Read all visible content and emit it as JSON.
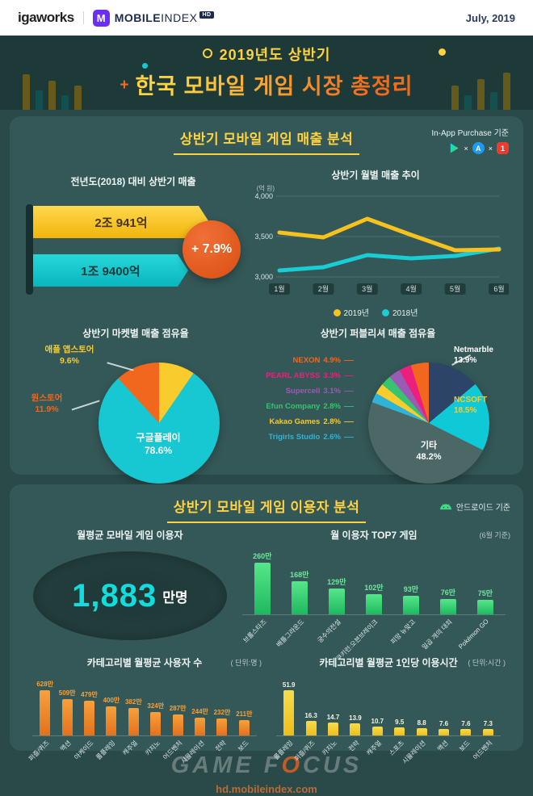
{
  "topbar": {
    "logo_igaworks": "igaworks",
    "logo_m": "M",
    "logo_mobile": "MOBILE",
    "logo_index": "INDEX",
    "logo_hd": "HD",
    "date": "July, 2019"
  },
  "header": {
    "kicker": "2019년도 상반기",
    "plus": "+",
    "title": "한국 모바일 게임 시장 총정리"
  },
  "revenue": {
    "section_title": "상반기 모바일 게임 매출 분석",
    "iap_note": "In-App Purchase 기준",
    "times": "×"
  },
  "users": {
    "section_title": "상반기 모바일 게임 이용자 분석",
    "android_note": "안드로이드 기준",
    "mau_title": "월평균 모바일 게임 이용자",
    "mau_value": "1,883",
    "mau_unit": "만명"
  },
  "footer": {
    "wm_game": "GAME",
    "wm_f": "F",
    "wm_o": "O",
    "wm_cus": "CUS",
    "url": "hd.mobileindex.com"
  },
  "icon_glyphs": {
    "app_store": "A",
    "one_store": "1"
  },
  "icons": {
    "google_play_icon": "play-triangle",
    "app_store_icon": "A-in-blue-circle",
    "one_store_icon": "1-in-red-square",
    "android_icon": "android-robot",
    "mobileindex_m_icon": "M-in-purple-square"
  },
  "chart_data": [
    {
      "id": "yoy_revenue",
      "type": "bar",
      "title": "전년도(2018) 대비 상반기 매출",
      "categories": [
        "2019 상반기",
        "2018 상반기"
      ],
      "values": [
        20941,
        19400
      ],
      "value_labels": [
        "2조 941억",
        "1조 9400억"
      ],
      "growth_label": "+ 7.9%",
      "colors": [
        "#f7c21e",
        "#19cdd4"
      ]
    },
    {
      "id": "monthly_revenue",
      "type": "line",
      "title": "상반기 월별 매출 추이",
      "ylabel": "(억 원)",
      "x": [
        "1월",
        "2월",
        "3월",
        "4월",
        "5월",
        "6월"
      ],
      "ylim": [
        3000,
        4000
      ],
      "yticks": [
        {
          "v": 4000,
          "label": "4,000"
        },
        {
          "v": 3500,
          "label": "3,500"
        },
        {
          "v": 3000,
          "label": "3,000"
        }
      ],
      "grid": true,
      "legend_position": "bottom",
      "series": [
        {
          "name": "2019년",
          "color": "#f7c21e",
          "values": [
            3550,
            3490,
            3720,
            3520,
            3330,
            3340
          ]
        },
        {
          "name": "2018년",
          "color": "#19cdd4",
          "values": [
            3080,
            3120,
            3270,
            3230,
            3260,
            3350
          ]
        }
      ]
    },
    {
      "id": "market_share",
      "type": "pie",
      "title": "상반기 마켓별 매출 점유율",
      "slices": [
        {
          "label": "애플 앱스토어",
          "value": 9.6,
          "pct": "9.6%",
          "color": "#f9cb2d"
        },
        {
          "label": "구글플레이",
          "value": 78.6,
          "pct": "78.6%",
          "color": "#17c8d2"
        },
        {
          "label": "원스토어",
          "value": 11.9,
          "pct": "11.9%",
          "color": "#f0671d"
        }
      ]
    },
    {
      "id": "publisher_share",
      "type": "pie",
      "title": "상반기 퍼블리셔 매출 점유율",
      "slices": [
        {
          "label": "Netmarble",
          "value": 13.9,
          "pct": "13.9%",
          "color": "#2c4468",
          "label_color": "#ffffff"
        },
        {
          "label": "NCSOFT",
          "value": 18.5,
          "pct": "18.5%",
          "color": "#10c9d6",
          "label_color": "#f9cb2d"
        },
        {
          "label": "기타",
          "value": 48.2,
          "pct": "48.2%",
          "color": "#4b6867",
          "label_color": "#ffffff"
        },
        {
          "label": "Trigirls Studio",
          "value": 2.6,
          "pct": "2.6%",
          "color": "#2fb4d8"
        },
        {
          "label": "Kakao Games",
          "value": 2.8,
          "pct": "2.8%",
          "color": "#f9cb2d"
        },
        {
          "label": "Efun Company",
          "value": 2.8,
          "pct": "2.8%",
          "color": "#37c46f"
        },
        {
          "label": "Supercell",
          "value": 3.1,
          "pct": "3.1%",
          "color": "#9a5bb5"
        },
        {
          "label": "PEARL ABYSS",
          "value": 3.3,
          "pct": "3.3%",
          "color": "#ec1f7f"
        },
        {
          "label": "NEXON",
          "value": 4.9,
          "pct": "4.9%",
          "color": "#f0671d"
        }
      ],
      "left_stack": [
        8,
        7,
        6,
        5,
        4,
        3
      ]
    },
    {
      "id": "top7_games",
      "type": "bar",
      "title": "월 이용자 TOP7 게임",
      "note": "(6월 기준)",
      "categories": [
        "브롤스타즈",
        "배틀그라운드",
        "궁수의전설",
        "쿠키런:오븐브레이크",
        "피망 뉴맞고",
        "일곱 개의 대죄",
        "Pokémon GO"
      ],
      "values": [
        260,
        168,
        129,
        102,
        93,
        76,
        75
      ],
      "value_labels": [
        "260만",
        "168만",
        "129만",
        "102만",
        "93만",
        "76만",
        "75만"
      ],
      "bar_color_top": "#57e68a",
      "bar_color_bottom": "#1eb95f",
      "value_color": "#6fe89d"
    },
    {
      "id": "category_users",
      "type": "bar",
      "title": "카테고리별 월평균 사용자 수",
      "unit": "( 단위:명 )",
      "categories": [
        "퍼즐/퀴즈",
        "액션",
        "아케이드",
        "롤플레잉",
        "캐주얼",
        "카지노",
        "어드벤처",
        "시뮬레이션",
        "전략",
        "보드"
      ],
      "values": [
        628,
        509,
        479,
        400,
        382,
        324,
        287,
        244,
        232,
        211
      ],
      "value_labels": [
        "628만",
        "509만",
        "479만",
        "400만",
        "382만",
        "324만",
        "287만",
        "244만",
        "232만",
        "211만"
      ],
      "bar_color_top": "#f6a13c",
      "bar_color_bottom": "#e4711d",
      "value_color": "#f6a13c"
    },
    {
      "id": "category_time",
      "type": "bar",
      "title": "카테고리별 월평균 1인당 이용시간",
      "unit": "( 단위:시간 )",
      "categories": [
        "롤플레잉",
        "퍼즐/퀴즈",
        "카지노",
        "전략",
        "캐주얼",
        "스포츠",
        "시뮬레이션",
        "액션",
        "보드",
        "어드벤처"
      ],
      "values": [
        51.9,
        16.3,
        14.7,
        13.9,
        10.7,
        9.5,
        8.8,
        7.6,
        7.6,
        7.3
      ],
      "value_labels": [
        "51.9",
        "16.3",
        "14.7",
        "13.9",
        "10.7",
        "9.5",
        "8.8",
        "7.6",
        "7.6",
        "7.3"
      ],
      "bar_color_top": "#f8dc4b",
      "bar_color_bottom": "#edbd1d",
      "value_color": "#f4f6e6"
    }
  ]
}
